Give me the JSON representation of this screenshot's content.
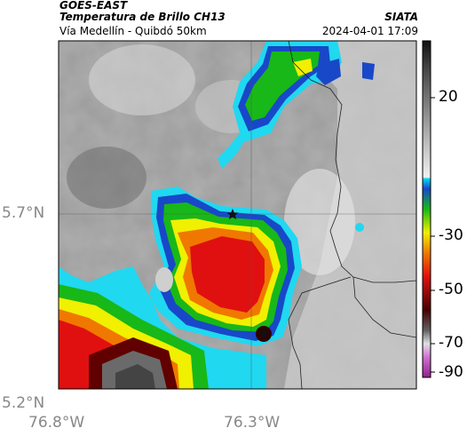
{
  "header": {
    "satellite": "GOES-EAST",
    "product": "Temperatura de Brillo CH13",
    "region": "Vía Medellín - Quibdó 50km",
    "source": "SIATA",
    "timestamp": "2024-04-01 17:09"
  },
  "map": {
    "lat_ticks": [
      {
        "value": 5.7,
        "label": "5.7°N"
      },
      {
        "value": 5.2,
        "label": "5.2°N"
      }
    ],
    "lon_ticks": [
      {
        "value": -76.8,
        "label": "76.8°W"
      },
      {
        "value": -76.3,
        "label": "76.3°W"
      }
    ],
    "marker": "star-marker"
  },
  "colorbar": {
    "ticks": [
      {
        "value": 20,
        "label": "20"
      },
      {
        "value": -30,
        "label": "-30"
      },
      {
        "value": -50,
        "label": "-50"
      },
      {
        "value": -70,
        "label": "-70"
      },
      {
        "value": -90,
        "label": "-90"
      }
    ],
    "colors": {
      "warm_light": "#c8c8c8",
      "warm_dark": "#1a1a1a",
      "cyan": "#00c8e8",
      "blue": "#1040c0",
      "green": "#20c020",
      "yellow": "#f0f000",
      "orange": "#f08000",
      "red": "#e01010",
      "dark_red": "#500000",
      "magenta": "#c040c0"
    }
  }
}
